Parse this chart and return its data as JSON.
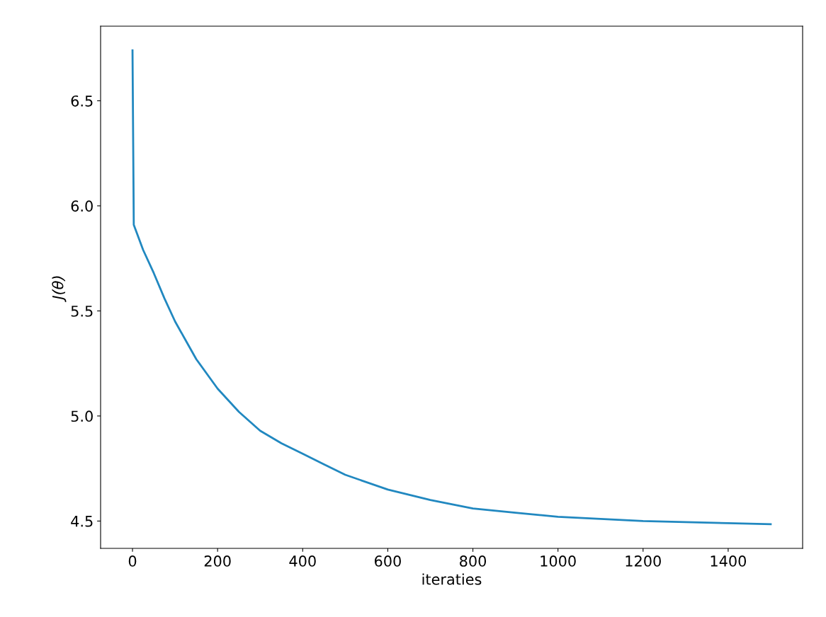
{
  "chart_data": {
    "type": "line",
    "xlabel": "iteraties",
    "ylabel": "J(θ)",
    "x": [
      0,
      3,
      25,
      50,
      75,
      100,
      125,
      150,
      200,
      250,
      300,
      350,
      400,
      450,
      500,
      600,
      700,
      800,
      900,
      1000,
      1100,
      1200,
      1300,
      1400,
      1500
    ],
    "series": [
      {
        "color": "#2188c0",
        "values": [
          6.74,
          5.91,
          5.79,
          5.68,
          5.56,
          5.45,
          5.36,
          5.27,
          5.13,
          5.02,
          4.93,
          4.87,
          4.82,
          4.77,
          4.72,
          4.65,
          4.6,
          4.56,
          4.54,
          4.52,
          4.51,
          4.5,
          4.495,
          4.49,
          4.485
        ]
      }
    ],
    "xlim": [
      -75,
      1575
    ],
    "ylim": [
      4.37,
      6.855
    ],
    "xticks": [
      0,
      200,
      400,
      600,
      800,
      1000,
      1200,
      1400
    ],
    "yticks": [
      4.5,
      {
        "value": 5,
        "label": "5.0"
      },
      5.5,
      {
        "value": 6,
        "label": "6.0"
      },
      6.5
    ],
    "grid": false,
    "legend": false,
    "marker": "none",
    "line_style": "solid"
  }
}
